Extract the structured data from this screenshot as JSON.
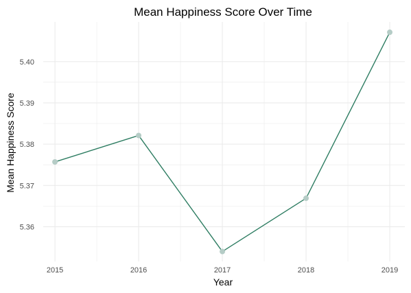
{
  "chart_data": {
    "type": "line",
    "title": "Mean Happiness Score Over Time",
    "xlabel": "Year",
    "ylabel": "Mean Happiness Score",
    "x": [
      2015,
      2016,
      2017,
      2018,
      2019
    ],
    "x_tick_labels": [
      "2015",
      "2016",
      "2017",
      "2018",
      "2019"
    ],
    "series": [
      {
        "values": [
          5.3757,
          5.3821,
          5.354,
          5.3669,
          5.4071
        ]
      }
    ],
    "y_ticks": [
      5.36,
      5.37,
      5.38,
      5.39,
      5.4
    ],
    "y_tick_labels": [
      "5.36",
      "5.37",
      "5.38",
      "5.39",
      "5.40"
    ],
    "xlim": [
      2014.86,
      2019.18
    ],
    "ylim": [
      5.3516,
      5.4096
    ],
    "grid": true,
    "line_color": "#2e7d62",
    "point_color": "#b5ccc6",
    "grid_color": "#ebebeb"
  }
}
